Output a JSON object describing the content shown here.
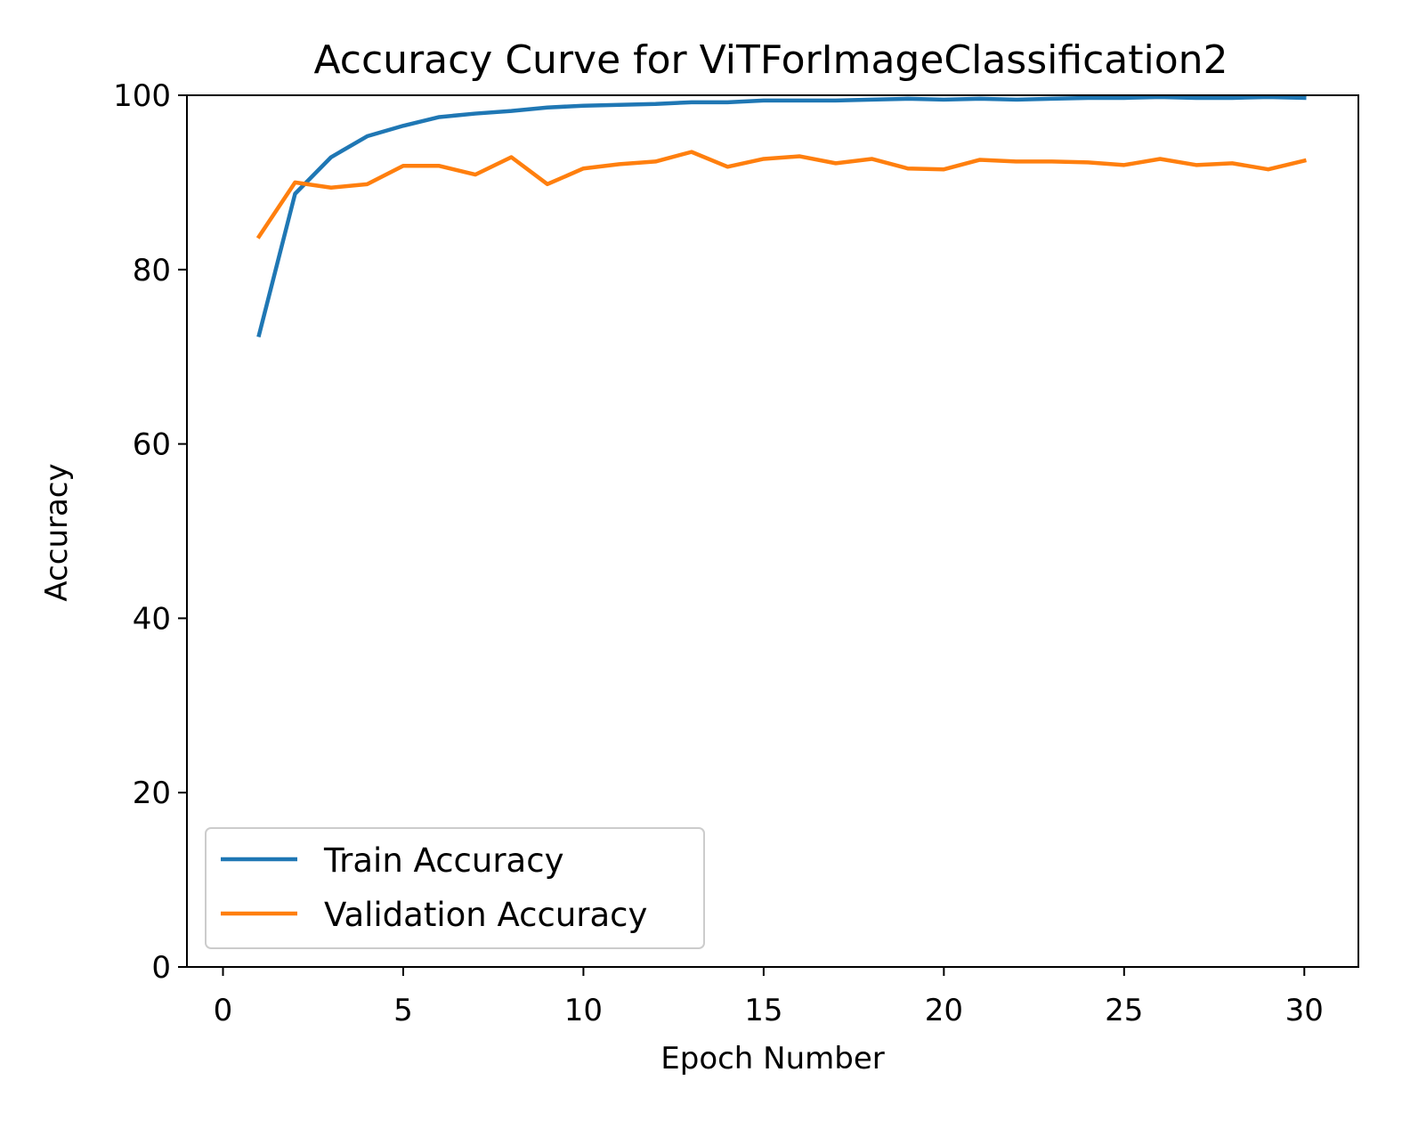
{
  "chart_data": {
    "type": "line",
    "title": "Accuracy Curve for  ViTForImageClassification2",
    "xlabel": "Epoch Number",
    "ylabel": "Accuracy",
    "xlim": [
      -1,
      31.5
    ],
    "ylim": [
      0,
      100
    ],
    "xticks": [
      0,
      5,
      10,
      15,
      20,
      25,
      30
    ],
    "yticks": [
      0,
      20,
      40,
      60,
      80,
      100
    ],
    "grid": false,
    "legend_position": "lower-left",
    "x": [
      1,
      2,
      3,
      4,
      5,
      6,
      7,
      8,
      9,
      10,
      11,
      12,
      13,
      14,
      15,
      16,
      17,
      18,
      19,
      20,
      21,
      22,
      23,
      24,
      25,
      26,
      27,
      28,
      29,
      30
    ],
    "series": [
      {
        "name": "Train Accuracy",
        "color": "#1f77b4",
        "values": [
          72.5,
          88.7,
          92.9,
          95.3,
          96.5,
          97.5,
          97.9,
          98.2,
          98.6,
          98.8,
          98.9,
          99.0,
          99.2,
          99.2,
          99.4,
          99.4,
          99.4,
          99.5,
          99.6,
          99.5,
          99.6,
          99.5,
          99.6,
          99.7,
          99.7,
          99.8,
          99.7,
          99.7,
          99.8,
          99.7
        ]
      },
      {
        "name": "Validation Accuracy",
        "color": "#ff7f0e",
        "values": [
          83.8,
          90.0,
          89.4,
          89.8,
          91.9,
          91.9,
          90.9,
          92.9,
          89.8,
          91.6,
          92.1,
          92.4,
          93.5,
          91.8,
          92.7,
          93.0,
          92.2,
          92.7,
          91.6,
          91.5,
          92.6,
          92.4,
          92.4,
          92.3,
          92.0,
          92.7,
          92.0,
          92.2,
          91.5,
          92.5
        ]
      }
    ]
  }
}
